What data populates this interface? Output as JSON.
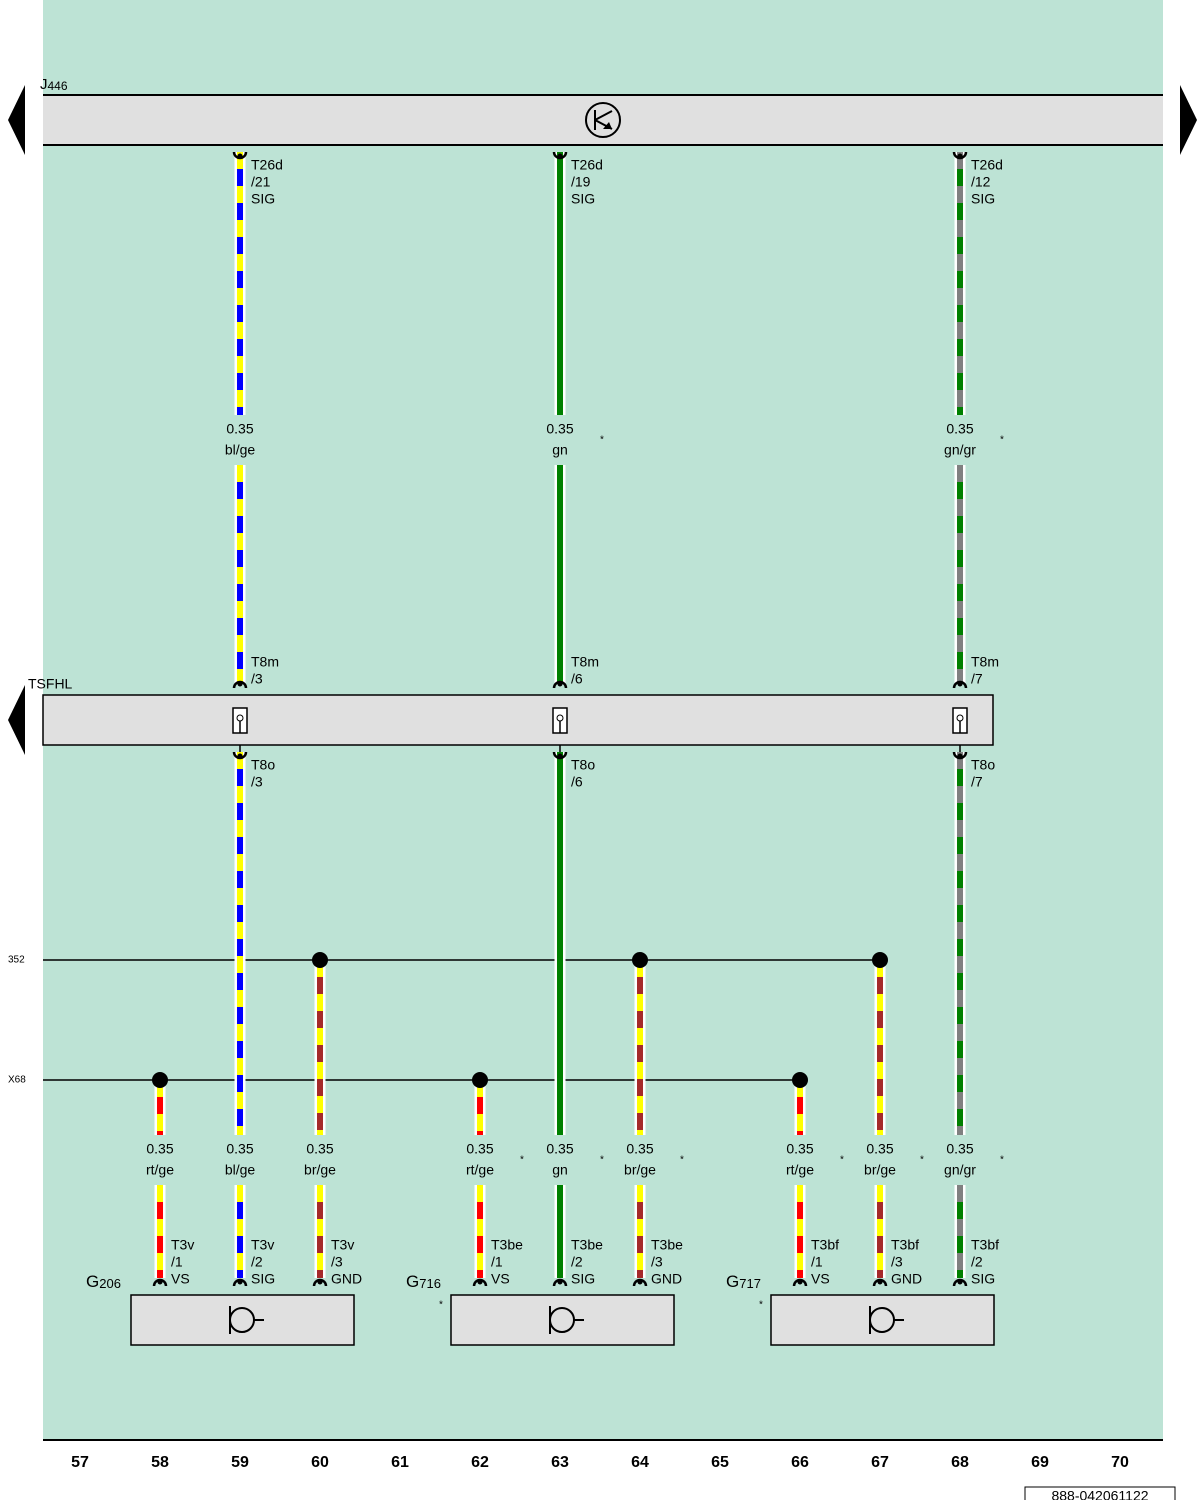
{
  "control_unit": {
    "letter": "J",
    "number": "446"
  },
  "connector_station": "TSFHL",
  "buses": [
    "352",
    "X68"
  ],
  "upper_wires": [
    {
      "connector": "T26d",
      "pin": "/21",
      "function": "SIG",
      "size": "0.35",
      "code": "bl/ge",
      "stripe": [
        "#0000ff",
        "#ffff00"
      ],
      "station_in": "T8m",
      "station_in_pin": "/3",
      "station_out": "T8o",
      "station_out_pin": "/3"
    },
    {
      "connector": "T26d",
      "pin": "/19",
      "function": "SIG",
      "size": "0.35",
      "code": "gn",
      "mark": "*",
      "stripe": [
        "#008000"
      ],
      "station_in": "T8m",
      "station_in_pin": "/6",
      "station_out": "T8o",
      "station_out_pin": "/6"
    },
    {
      "connector": "T26d",
      "pin": "/12",
      "function": "SIG",
      "size": "0.35",
      "code": "gn/gr",
      "mark": "*",
      "stripe": [
        "#008000",
        "#808080"
      ],
      "station_in": "T8m",
      "station_in_pin": "/7",
      "station_out": "T8o",
      "station_out_pin": "/7"
    }
  ],
  "lower_wires": [
    {
      "size": "0.35",
      "code": "rt/ge",
      "connector": "T3v",
      "pin": "/1",
      "function": "VS",
      "stripe": [
        "#ff0000",
        "#ffff00"
      ]
    },
    {
      "size": "0.35",
      "code": "bl/ge",
      "connector": "T3v",
      "pin": "/2",
      "function": "SIG",
      "stripe": [
        "#0000ff",
        "#ffff00"
      ]
    },
    {
      "size": "0.35",
      "code": "br/ge",
      "connector": "T3v",
      "pin": "/3",
      "function": "GND",
      "stripe": [
        "#a52a2a",
        "#ffff00"
      ]
    },
    {
      "size": "0.35",
      "code": "rt/ge",
      "mark": "*",
      "connector": "T3be",
      "pin": "/1",
      "function": "VS",
      "stripe": [
        "#ff0000",
        "#ffff00"
      ]
    },
    {
      "size": "0.35",
      "code": "gn",
      "mark": "*",
      "connector": "T3be",
      "pin": "/2",
      "function": "SIG",
      "stripe": [
        "#008000"
      ]
    },
    {
      "size": "0.35",
      "code": "br/ge",
      "mark": "*",
      "connector": "T3be",
      "pin": "/3",
      "function": "GND",
      "stripe": [
        "#a52a2a",
        "#ffff00"
      ]
    },
    {
      "size": "0.35",
      "code": "rt/ge",
      "mark": "*",
      "connector": "T3bf",
      "pin": "/1",
      "function": "VS",
      "stripe": [
        "#ff0000",
        "#ffff00"
      ]
    },
    {
      "size": "0.35",
      "code": "br/ge",
      "mark": "*",
      "connector": "T3bf",
      "pin": "/3",
      "function": "GND",
      "stripe": [
        "#a52a2a",
        "#ffff00"
      ]
    },
    {
      "size": "0.35",
      "code": "gn/gr",
      "mark": "*",
      "connector": "T3bf",
      "pin": "/2",
      "function": "SIG",
      "stripe": [
        "#008000",
        "#808080"
      ]
    }
  ],
  "components": [
    {
      "letter": "G",
      "number": "206"
    },
    {
      "letter": "G",
      "number": "716",
      "mark": "*"
    },
    {
      "letter": "G",
      "number": "717",
      "mark": "*"
    }
  ],
  "columns": [
    57,
    58,
    59,
    60,
    61,
    62,
    63,
    64,
    65,
    66,
    67,
    68,
    69,
    70
  ],
  "drawing_number": "888-042061122"
}
